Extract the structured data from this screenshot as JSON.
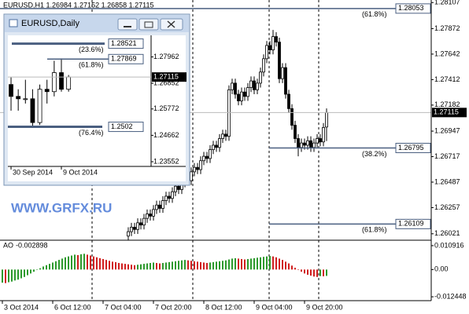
{
  "chart_data": [
    {
      "type": "candlestick",
      "title": "EURUSD,H1 1.26984 1.27152 1.26858 1.27115",
      "watermark": "WWW.GRFX.RU",
      "x": [
        40,
        41,
        42,
        43,
        44,
        45,
        46,
        47,
        48,
        49,
        50,
        51,
        52,
        53,
        54,
        55,
        56,
        57,
        58,
        59,
        60,
        61,
        62,
        63,
        64,
        65,
        66,
        67,
        68,
        69,
        70,
        71,
        72,
        73,
        74,
        75,
        76,
        77,
        78,
        79,
        80,
        81,
        82,
        83,
        84,
        85,
        86,
        87,
        88,
        89,
        90,
        91,
        92,
        93,
        94,
        95,
        96,
        97,
        98,
        99,
        100,
        101,
        102,
        103
      ],
      "open": [
        1.26,
        1.2604,
        1.2608,
        1.2606,
        1.2612,
        1.261,
        1.2616,
        1.262,
        1.2618,
        1.2624,
        1.2628,
        1.2625,
        1.2632,
        1.2636,
        1.2634,
        1.264,
        1.2645,
        1.2642,
        1.2648,
        1.2652,
        1.265,
        1.2658,
        1.2662,
        1.266,
        1.2668,
        1.2672,
        1.267,
        1.2678,
        1.2682,
        1.268,
        1.2688,
        1.2692,
        1.269,
        1.2732,
        1.2738,
        1.2728,
        1.2722,
        1.273,
        1.2726,
        1.2734,
        1.274,
        1.2732,
        1.2738,
        1.2748,
        1.276,
        1.2772,
        1.2768,
        1.278,
        1.2775,
        1.2742,
        1.2752,
        1.2728,
        1.2715,
        1.27,
        1.2688,
        1.268,
        1.2684,
        1.2682,
        1.2686,
        1.268,
        1.2684,
        1.2688,
        1.2685,
        1.26984
      ],
      "high": [
        1.2608,
        1.2612,
        1.2612,
        1.2616,
        1.2616,
        1.262,
        1.2624,
        1.2624,
        1.2628,
        1.2632,
        1.2632,
        1.2636,
        1.264,
        1.264,
        1.2644,
        1.2649,
        1.2649,
        1.2652,
        1.2656,
        1.2656,
        1.2662,
        1.2666,
        1.2666,
        1.2672,
        1.2676,
        1.2676,
        1.2682,
        1.2686,
        1.2686,
        1.2692,
        1.2696,
        1.2696,
        1.2736,
        1.2742,
        1.2742,
        1.2732,
        1.2734,
        1.2734,
        1.2738,
        1.2744,
        1.2744,
        1.2742,
        1.2752,
        1.2764,
        1.2776,
        1.2776,
        1.2786,
        1.2784,
        1.2779,
        1.2756,
        1.2756,
        1.2732,
        1.2719,
        1.2704,
        1.2692,
        1.2688,
        1.2688,
        1.269,
        1.269,
        1.2688,
        1.2692,
        1.2692,
        1.2702,
        1.27152
      ],
      "low": [
        1.2596,
        1.26,
        1.2602,
        1.2602,
        1.2606,
        1.2606,
        1.2612,
        1.2614,
        1.2614,
        1.262,
        1.2621,
        1.2621,
        1.2628,
        1.263,
        1.263,
        1.2636,
        1.2638,
        1.2638,
        1.2644,
        1.2646,
        1.2646,
        1.2654,
        1.2656,
        1.2656,
        1.2664,
        1.2666,
        1.2666,
        1.2674,
        1.2676,
        1.2676,
        1.2684,
        1.2686,
        1.2686,
        1.2728,
        1.2724,
        1.2718,
        1.2718,
        1.2722,
        1.2722,
        1.273,
        1.2728,
        1.2728,
        1.2734,
        1.2744,
        1.2756,
        1.2764,
        1.2764,
        1.2771,
        1.2738,
        1.2738,
        1.2724,
        1.2711,
        1.2696,
        1.2684,
        1.2672,
        1.2676,
        1.2678,
        1.2678,
        1.2676,
        1.2676,
        1.268,
        1.2681,
        1.2681,
        1.26858
      ],
      "close": [
        1.2604,
        1.2608,
        1.2606,
        1.2612,
        1.261,
        1.2616,
        1.262,
        1.2618,
        1.2624,
        1.2628,
        1.2625,
        1.2632,
        1.2636,
        1.2634,
        1.264,
        1.2645,
        1.2642,
        1.2648,
        1.2652,
        1.265,
        1.2658,
        1.2662,
        1.266,
        1.2668,
        1.2672,
        1.267,
        1.2678,
        1.2682,
        1.268,
        1.2688,
        1.2692,
        1.269,
        1.2732,
        1.2738,
        1.2728,
        1.2722,
        1.273,
        1.2726,
        1.2734,
        1.274,
        1.2732,
        1.2738,
        1.2748,
        1.276,
        1.2772,
        1.2768,
        1.278,
        1.2775,
        1.2742,
        1.2752,
        1.2728,
        1.2715,
        1.27,
        1.2688,
        1.268,
        1.2684,
        1.2682,
        1.2686,
        1.268,
        1.2684,
        1.2688,
        1.2685,
        1.2698,
        1.27115
      ],
      "last_price": 1.27115,
      "levels": [
        {
          "price": 1.28053,
          "label": "(61.8%)"
        },
        {
          "price": 1.26795,
          "label": "(38.2%)"
        },
        {
          "price": 1.26109,
          "label": "(61.8%)"
        }
      ],
      "xlim": [
        -0.75,
        136.25
      ],
      "xticks": [
        {
          "value": 0,
          "label": "3 Oct 2014"
        },
        {
          "value": 16,
          "label": "6 Oct 12:00"
        },
        {
          "value": 32,
          "label": "7 Oct 04:00"
        },
        {
          "value": 48,
          "label": "7 Oct 20:00"
        },
        {
          "value": 64,
          "label": "8 Oct 12:00"
        },
        {
          "value": 80,
          "label": "9 Oct 04:00"
        },
        {
          "value": 96,
          "label": "9 Oct 20:00"
        }
      ],
      "ylim": [
        1.2597,
        1.2813
      ],
      "yticks": [
        1.28107,
        1.27872,
        1.27642,
        1.27412,
        1.27182,
        1.26947,
        1.26717,
        1.26487,
        1.26257,
        1.26021
      ],
      "color": "#000000"
    },
    {
      "type": "bar",
      "title": "AO",
      "up_color": "#2e9a2e",
      "down_color": "#d02020",
      "values": [
        -0.006,
        -0.0062,
        -0.0058,
        -0.0055,
        -0.005,
        -0.0046,
        -0.004,
        -0.0034,
        -0.0026,
        -0.0018,
        -0.001,
        -0.0002,
        0.0006,
        0.0014,
        0.002,
        0.0026,
        0.0032,
        0.0038,
        0.0044,
        0.005,
        0.0056,
        0.006,
        0.0064,
        0.0068,
        0.0066,
        0.007,
        0.0072,
        0.0068,
        0.0064,
        0.006,
        0.0056,
        0.0052,
        0.0048,
        0.0044,
        0.004,
        0.0036,
        0.0034,
        0.003,
        0.0028,
        0.0026,
        0.0024,
        0.0022,
        0.002,
        0.0022,
        0.0024,
        0.0026,
        0.0028,
        0.003,
        0.0032,
        0.003,
        0.0028,
        0.003,
        0.0032,
        0.0034,
        0.0036,
        0.0038,
        0.004,
        0.0042,
        0.0044,
        0.0042,
        0.004,
        0.0038,
        0.0036,
        0.0034,
        0.0032,
        0.003,
        0.0032,
        0.0034,
        0.0036,
        0.0038,
        0.004,
        0.0042,
        0.0046,
        0.005,
        0.0052,
        0.005,
        0.0048,
        0.0046,
        0.0048,
        0.005,
        0.0052,
        0.0054,
        0.0056,
        0.0058,
        0.006,
        0.0062,
        0.006,
        0.0056,
        0.005,
        0.0044,
        0.0036,
        0.0028,
        0.0018,
        0.0008,
        -0.0002,
        -0.001,
        -0.0018,
        -0.0024,
        -0.0028,
        -0.0032,
        -0.0034,
        -0.003,
        -0.0031,
        -0.002898
      ],
      "xlim": [
        -0.75,
        136.25
      ],
      "ylim": [
        -0.01386,
        0.01304
      ],
      "yticks": [
        0.010916,
        {
          "value": 0,
          "label": "0.00"
        },
        -0.012448
      ]
    },
    {
      "type": "candlestick",
      "title": "EURUSD,Daily",
      "x": [
        0,
        1,
        2,
        3,
        4,
        5,
        6,
        7,
        8
      ],
      "open": [
        1.268,
        1.263,
        1.262,
        1.262,
        1.252,
        1.266,
        1.265,
        1.273,
        1.266
      ],
      "high": [
        1.271,
        1.266,
        1.27,
        1.266,
        1.268,
        1.27,
        1.278,
        1.279,
        1.272
      ],
      "low": [
        1.257,
        1.257,
        1.26,
        1.25,
        1.251,
        1.26,
        1.263,
        1.265,
        1.265
      ],
      "close": [
        1.263,
        1.262,
        1.262,
        1.252,
        1.266,
        1.265,
        1.273,
        1.266,
        1.27115
      ],
      "last_price": 1.27115,
      "levels": [
        {
          "price": 1.28521,
          "label": "(23.6%)"
        },
        {
          "price": 1.27869,
          "label": "(61.8%)"
        },
        {
          "price": 1.2502,
          "label": "(76.4%)"
        }
      ],
      "xlim": [
        -0.44,
        19.47
      ],
      "xticks": [
        {
          "value": 0,
          "label": "30 Sep 2014"
        },
        {
          "value": 7,
          "label": "9 Oct 2014"
        }
      ],
      "ylim": [
        1.2342,
        1.2887
      ],
      "yticks": [
        1.27962,
        1.26852,
        1.25772,
        1.24662,
        1.23552
      ],
      "color": "#000000"
    }
  ]
}
